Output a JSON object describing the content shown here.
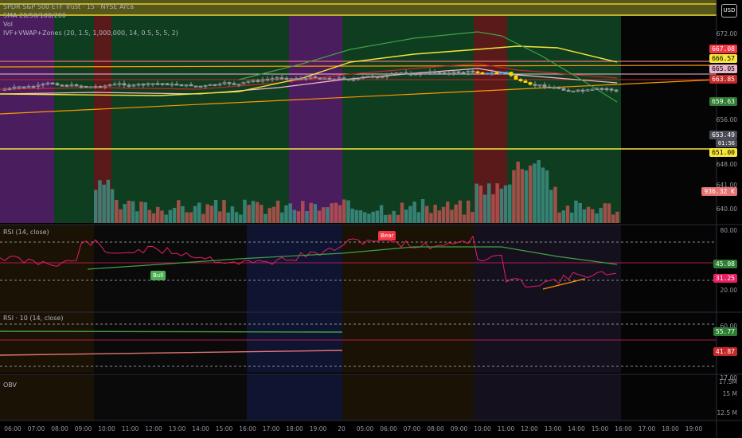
{
  "header": {
    "symbol_line": "SPDR S&P 500 ETF Trust · 15 · NYSE Arca",
    "currency": "USD",
    "indicators": [
      "SMA 20/50/100/200",
      "Vol",
      "IVF+VWAP+Zones (20, 1.5, 1,000,000, 14, 0.5, 5, 5, 2)"
    ]
  },
  "price_axis": {
    "ticks": [
      "672.00",
      "656.00",
      "648.00",
      "641.00",
      "640.00"
    ],
    "badges": [
      {
        "label": "667.08",
        "color": "#f23645"
      },
      {
        "label": "666.57",
        "color": "#f5e63b",
        "text_color": "#000"
      },
      {
        "label": "665.05",
        "color": "#e8b4c8",
        "text_color": "#000"
      },
      {
        "label": "663.85",
        "color": "#c62828"
      },
      {
        "label": "659.63",
        "color": "#2e7d32"
      },
      {
        "label": "653.49",
        "color": "#4a4d56"
      },
      {
        "label": "01:56",
        "color": "#4a4d56"
      },
      {
        "label": "651.00",
        "color": "#f5e63b",
        "text_color": "#000"
      },
      {
        "label": "936.32 K",
        "color": "#e57373"
      }
    ]
  },
  "rsi_panel": {
    "title": "RSI (14, close)",
    "ticks": [
      "80.00",
      "20.00"
    ],
    "badges": [
      {
        "label": "45.08",
        "color": "#2e7d32"
      },
      {
        "label": "31.25",
        "color": "#e91e63"
      }
    ],
    "signals": [
      "Bear",
      "Bull"
    ]
  },
  "rsi10_panel": {
    "title": "RSI · 10 (14, close)",
    "ticks": [
      "60.00",
      "17.00"
    ],
    "badges": [
      {
        "label": "55.77",
        "color": "#2e7d32"
      },
      {
        "label": "41.87",
        "color": "#c62828"
      }
    ]
  },
  "obv_panel": {
    "title": "OBV",
    "ticks": [
      "17.5M",
      "15 M",
      "12.5 M"
    ]
  },
  "time_axis": [
    "06:00",
    "07:00",
    "08:00",
    "09:00",
    "10:00",
    "11:00",
    "12:00",
    "13:00",
    "14:00",
    "15:00",
    "16:00",
    "17:00",
    "18:00",
    "19:00",
    "20",
    "05:00",
    "06:00",
    "07:00",
    "08:00",
    "09:00",
    "10:00",
    "11:00",
    "12:00",
    "13:00",
    "14:00",
    "15:00",
    "16:00",
    "17:00",
    "18:00",
    "19:00"
  ]
}
